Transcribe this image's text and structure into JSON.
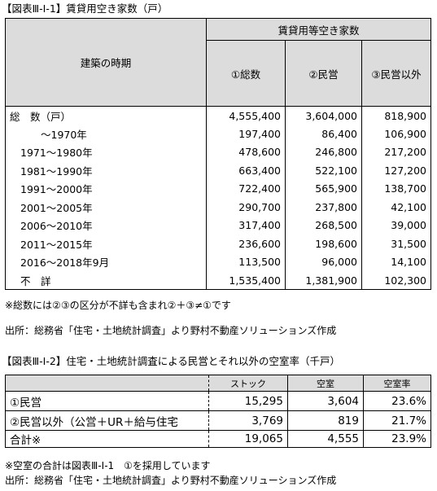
{
  "table1": {
    "title": "【図表Ⅲ-Ⅰ-1】賃貸用空き家数（戸）",
    "header": {
      "period_label": "建築の時期",
      "group_label": "賃貸用等空き家数",
      "columns": [
        "①総数",
        "②民営",
        "③民営以外"
      ]
    },
    "rows": [
      {
        "label": "総　数（戸）",
        "total": "4,555,400",
        "private": "3,604,000",
        "other": "818,900"
      },
      {
        "label": "　　～1970年",
        "total": "197,400",
        "private": "86,400",
        "other": "106,900"
      },
      {
        "label": "1971～1980年",
        "total": "478,600",
        "private": "246,800",
        "other": "217,200"
      },
      {
        "label": "1981～1990年",
        "total": "663,400",
        "private": "522,100",
        "other": "127,200"
      },
      {
        "label": "1991～2000年",
        "total": "722,400",
        "private": "565,900",
        "other": "138,700"
      },
      {
        "label": "2001～2005年",
        "total": "290,700",
        "private": "237,800",
        "other": "42,100"
      },
      {
        "label": "2006～2010年",
        "total": "317,400",
        "private": "268,500",
        "other": "39,000"
      },
      {
        "label": "2011～2015年",
        "total": "236,600",
        "private": "198,600",
        "other": "31,500"
      },
      {
        "label": "2016～2018年9月",
        "total": "113,500",
        "private": "96,000",
        "other": "14,100"
      },
      {
        "label": "不　詳",
        "total": "1,535,400",
        "private": "1,381,900",
        "other": "102,300"
      }
    ],
    "note": "※総数には②③の区分が不詳も含まれ②＋③≠①です",
    "source": "出所：総務省「住宅・土地統計調査」より野村不動産ソリューションズ作成"
  },
  "table2": {
    "title": "【図表Ⅲ-Ⅰ-2】住宅・土地統計調査による民営とそれ以外の空室率（千戸）",
    "columns": [
      "ストック",
      "空室",
      "空室率"
    ],
    "rows": [
      {
        "label": "①民営",
        "stock": "15,295",
        "vacant": "3,604",
        "rate": "23.6%"
      },
      {
        "label": "②民営以外（公営＋UR＋給与住宅",
        "stock": "3,769",
        "vacant": "819",
        "rate": "21.7%"
      },
      {
        "label": "合計※",
        "stock": "19,065",
        "vacant": "4,555",
        "rate": "23.9%"
      }
    ],
    "note": "※空室の合計は図表Ⅲ-Ⅰ-1　①を採用しています",
    "source": "出所：総務省「住宅・土地統計調査」より野村不動産ソリューションズ作成"
  }
}
